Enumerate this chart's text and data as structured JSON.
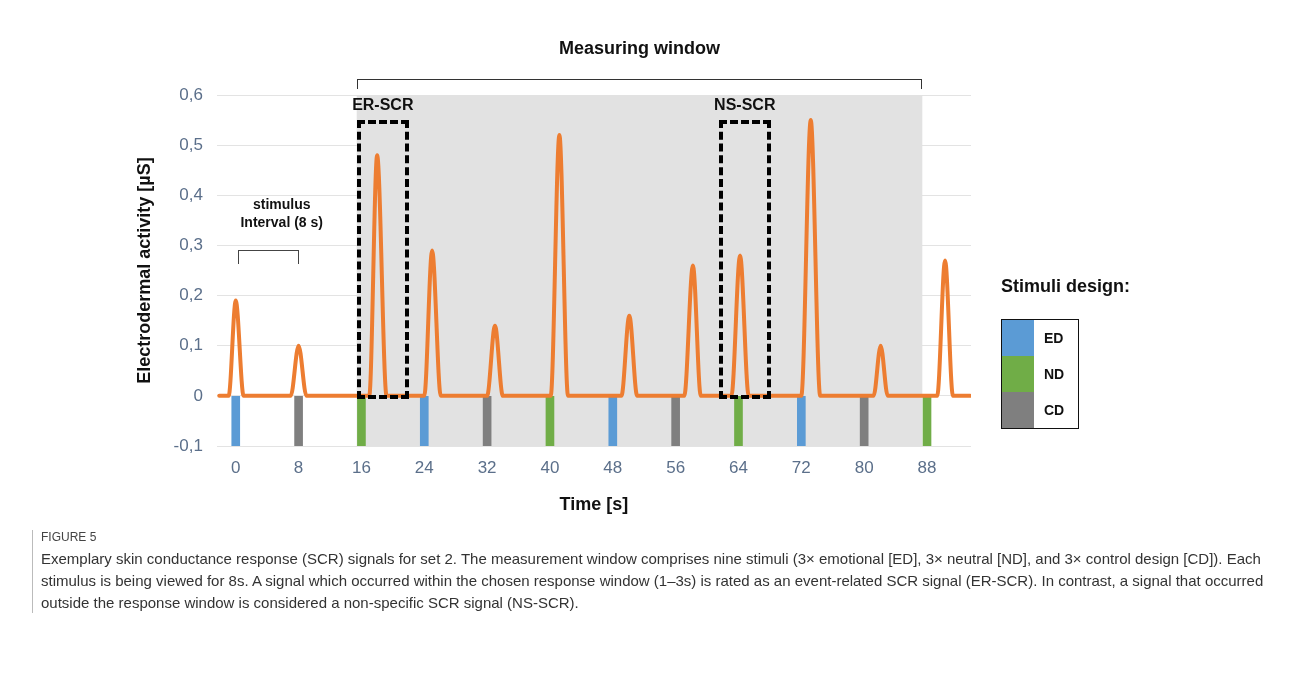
{
  "chart_data": {
    "type": "line",
    "xlabel": "Time [s]",
    "ylabel": "Electrodermal activity [µS]",
    "legend_title": "Stimuli design:",
    "legend": "right",
    "grid": "y",
    "marker": "none",
    "line_style": "solid",
    "xlim": [
      -2.4,
      93.6
    ],
    "xticks": [
      0,
      8,
      16,
      24,
      32,
      40,
      48,
      56,
      64,
      72,
      80,
      88
    ],
    "ylim": [
      -0.1,
      0.6
    ],
    "yticks": [
      {
        "value": -0.1,
        "label": "-0,1"
      },
      0,
      {
        "value": 0.1,
        "label": "0,1"
      },
      {
        "value": 0.2,
        "label": "0,2"
      },
      {
        "value": 0.3,
        "label": "0,3"
      },
      {
        "value": 0.4,
        "label": "0,4"
      },
      {
        "value": 0.5,
        "label": "0,5"
      },
      {
        "value": 0.6,
        "label": "0,6"
      }
    ],
    "series": [
      {
        "color": "#ed7d31",
        "x": [
          -2.1,
          -0.9,
          0,
          1,
          7,
          8,
          9,
          17,
          18,
          19.2,
          24,
          25,
          26.1,
          32,
          33,
          34,
          40.1,
          41.2,
          42.3,
          49.1,
          50.1,
          51.1,
          57.1,
          58.2,
          59.2,
          63.1,
          64.2,
          65.3,
          72,
          73.2,
          74.4,
          81.2,
          82.1,
          83,
          89.3,
          90.3,
          91.3,
          93.5
        ],
        "values": [
          0,
          0,
          0.19,
          0,
          0,
          0.1,
          0,
          0,
          0.48,
          0,
          0,
          0.29,
          0,
          0,
          0.14,
          0,
          0,
          0.52,
          0,
          0,
          0.16,
          0,
          0,
          0.26,
          0,
          0,
          0.28,
          0,
          0,
          0.55,
          0,
          0,
          0.1,
          0,
          0,
          0.27,
          0,
          0
        ]
      },
      {
        "type": "bar",
        "name": "ED",
        "color": "#5b9bd5",
        "x": [
          0,
          24,
          48,
          72
        ],
        "values": [
          -0.1,
          -0.1,
          -0.1,
          -0.1
        ]
      },
      {
        "type": "bar",
        "name": "ND",
        "color": "#70ad47",
        "x": [
          16,
          40,
          64,
          88
        ],
        "values": [
          -0.1,
          -0.1,
          -0.1,
          -0.1
        ]
      },
      {
        "type": "bar",
        "name": "CD",
        "color": "#7f7f7f",
        "x": [
          8,
          32,
          56,
          80
        ],
        "values": [
          -0.1,
          -0.1,
          -0.1,
          -0.1
        ]
      }
    ],
    "bands": [
      {
        "axis": "x",
        "from": 15.4,
        "to": 87.4,
        "label": "Measuring window",
        "color": "#e2e2e2"
      }
    ],
    "annotations": [
      "stimulus\nInterval (8 s)",
      "ER-SCR",
      "NS-SCR",
      "FIGURE 5",
      "Exemplary skin conductance response (SCR) signals for set 2. The measurement window comprises nine stimuli (3× emotional [ED], 3× neutral [ND], and 3× control design [CD]). Each stimulus is being viewed for 8s. A signal which occurred within the chosen response window (1–3s) is rated as an event-related SCR signal (ER-SCR). In contrast, a signal that occurred outside the response window is considered a non-specific SCR signal (NS-SCR)."
    ]
  }
}
